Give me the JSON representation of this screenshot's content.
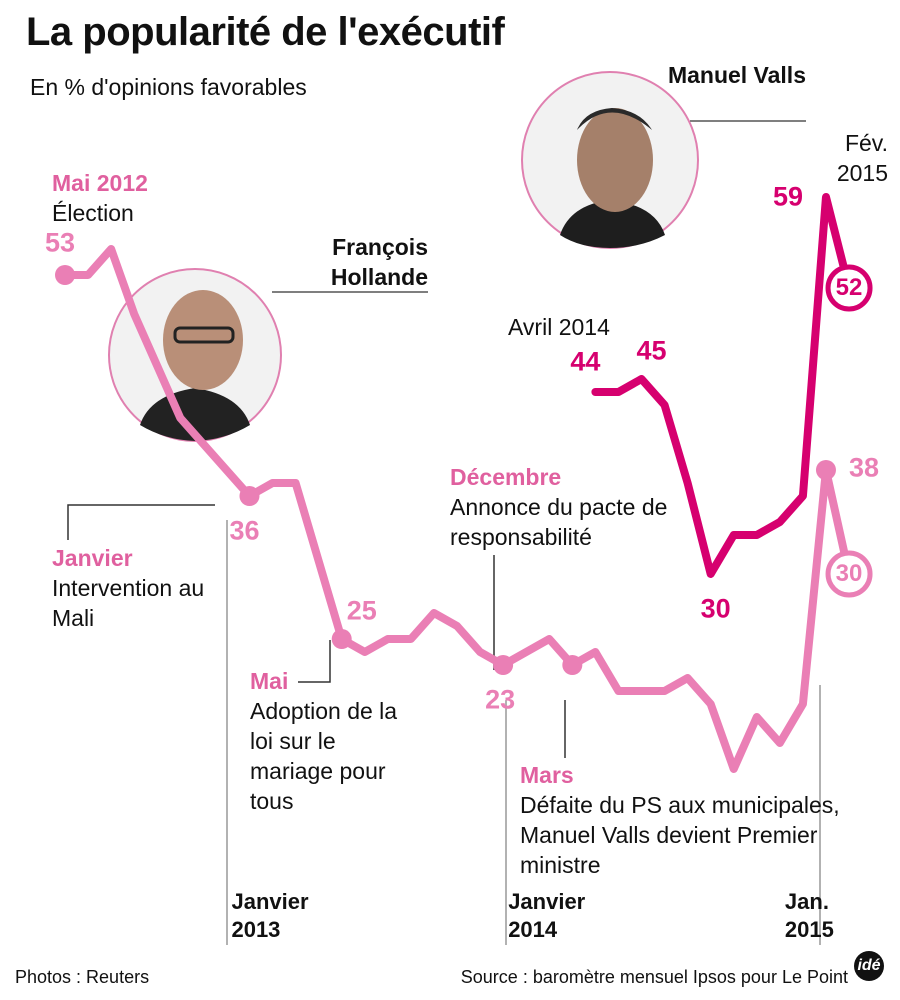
{
  "chart_data": {
    "type": "line",
    "title": "La popularité de l'exécutif",
    "subtitle": "En % d'opinions favorables",
    "categories": [
      null,
      null,
      null,
      null,
      null,
      null,
      null,
      null,
      "Janvier 2013",
      null,
      null,
      null,
      null,
      null,
      null,
      null,
      null,
      null,
      null,
      null,
      "Janvier 2014",
      null,
      null,
      null,
      null,
      null,
      null,
      null,
      null,
      null,
      null,
      null,
      "Jan. 2015",
      null,
      null
    ],
    "series": [
      {
        "name": "François Hollande",
        "color": "#ea7fb5",
        "values": [
          53,
          53,
          55,
          50,
          46,
          42,
          40,
          38,
          36,
          37,
          37,
          31,
          25,
          24,
          25,
          25,
          27,
          26,
          24,
          23,
          24,
          25,
          23,
          24,
          21,
          21,
          21,
          22,
          20,
          15,
          19,
          17,
          20,
          38,
          30
        ]
      },
      {
        "name": "Manuel Valls",
        "color": "#d6006f",
        "values": [
          null,
          null,
          null,
          null,
          null,
          null,
          null,
          null,
          null,
          null,
          null,
          null,
          null,
          null,
          null,
          null,
          null,
          null,
          null,
          null,
          null,
          null,
          null,
          44,
          44,
          45,
          43,
          37,
          30,
          33,
          33,
          34,
          36,
          59,
          52
        ]
      }
    ],
    "annotations": [
      {
        "title": "Mai 2012",
        "text": "Élection"
      },
      {
        "title": "Janvier",
        "text": "Intervention au Mali"
      },
      {
        "title": "Mai",
        "text": "Adoption de la loi sur le mariage pour tous"
      },
      {
        "title": "Décembre",
        "text": "Annonce du pacte de responsabilité"
      },
      {
        "title": "Mars",
        "text": "Défaite du PS aux municipales, Manuel Valls devient Premier ministre"
      },
      {
        "text": "Avril 2014"
      },
      {
        "text": "Fév. 2015"
      }
    ],
    "photo_credit": "Photos : Reuters",
    "source": "Source : baromètre mensuel Ipsos pour Le Point",
    "logo": "idé"
  }
}
